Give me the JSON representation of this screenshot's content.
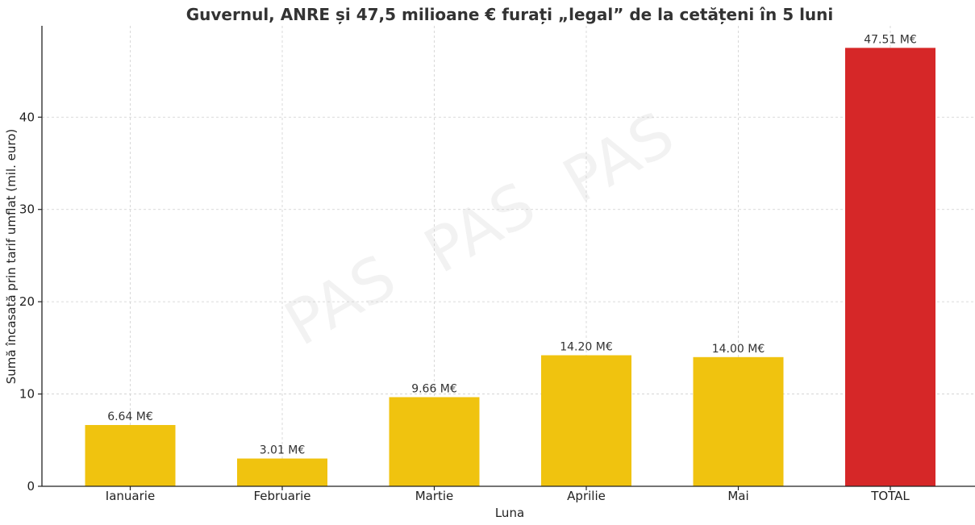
{
  "chart_data": {
    "type": "bar",
    "title": "Guvernul, ANRE și 47,5 milioane € furați „legal” de la cetățeni în 5 luni",
    "xlabel": "Luna",
    "ylabel": "Sumă încasată prin tarif umflat (mil. euro)",
    "categories": [
      "Ianuarie",
      "Februarie",
      "Martie",
      "Aprilie",
      "Mai",
      "TOTAL"
    ],
    "values": [
      6.64,
      3.01,
      9.66,
      14.2,
      14.0,
      47.51
    ],
    "data_labels": [
      "6.64 M€",
      "3.01 M€",
      "9.66 M€",
      "14.20 M€",
      "14.00 M€",
      "47.51 M€"
    ],
    "bar_colors": [
      "#f0c30f",
      "#f0c30f",
      "#f0c30f",
      "#f0c30f",
      "#f0c30f",
      "#d62728"
    ],
    "ylim": [
      0,
      49.9
    ],
    "yticks": [
      0,
      10,
      20,
      30,
      40
    ],
    "grid": true,
    "watermark": [
      "PAS",
      "PAS",
      "PAS"
    ]
  }
}
